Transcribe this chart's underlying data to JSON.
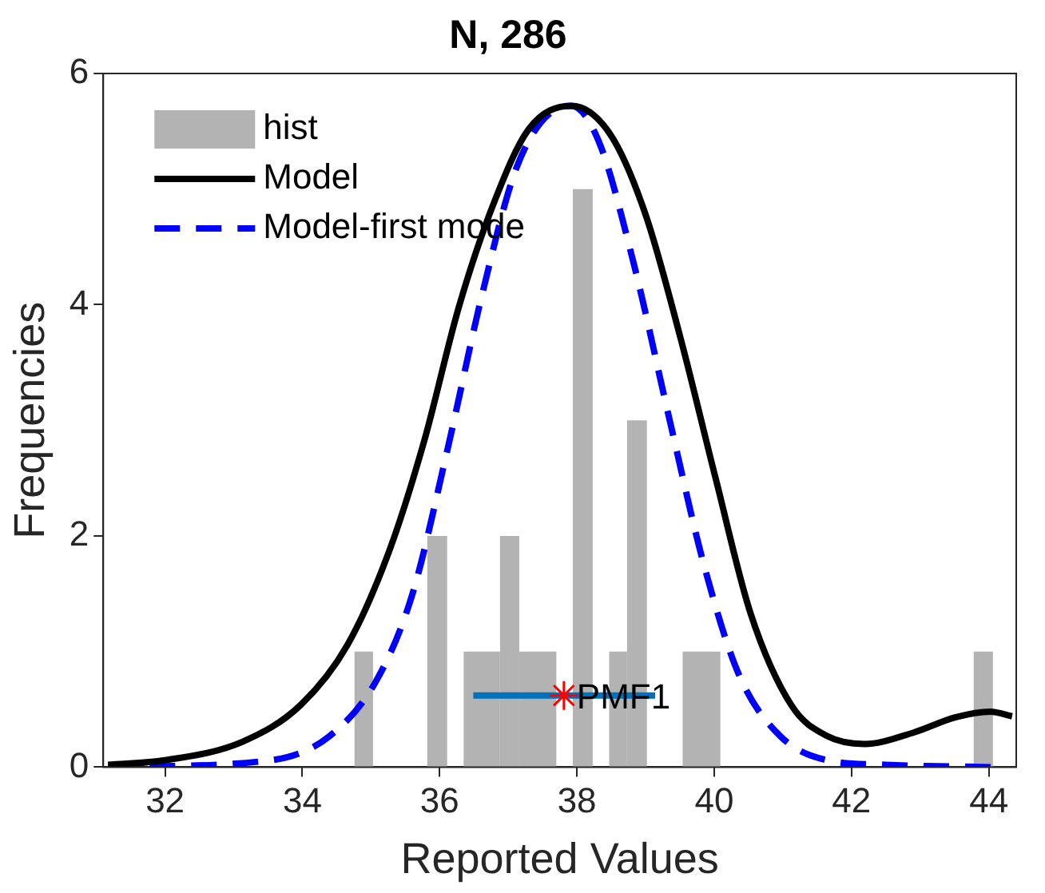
{
  "chart_data": {
    "type": "histogram",
    "title": "N, 286",
    "xlabel": "Reported Values",
    "ylabel": "Frequencies",
    "xlim": [
      31.1,
      44.4
    ],
    "ylim": [
      0,
      6
    ],
    "xticks": [
      32,
      34,
      36,
      38,
      40,
      42,
      44
    ],
    "yticks": [
      0,
      2,
      4,
      6
    ],
    "grid": false,
    "legend": "top left",
    "marker": "none",
    "series": [
      {
        "name": "hist",
        "color": "#b3b3b3",
        "bins": [
          34.76,
          35.03,
          35.82,
          36.11,
          36.35,
          36.88,
          37.16,
          37.7,
          37.94,
          38.23,
          38.47,
          38.73,
          39.02,
          39.54,
          40.09,
          43.78,
          44.06
        ],
        "values": [
          1,
          0,
          2,
          0,
          1,
          2,
          1,
          0,
          5,
          0,
          1,
          3,
          0,
          1,
          0,
          1
        ]
      },
      {
        "name": "Model",
        "type": "line",
        "color": "#000000",
        "line_style": "solid",
        "x": [
          31.17,
          32.0,
          33.13,
          33.98,
          34.66,
          35.26,
          35.77,
          36.28,
          36.79,
          37.3,
          37.92,
          38.49,
          39.0,
          39.51,
          40.02,
          40.53,
          41.13,
          41.64,
          42.19,
          42.91,
          43.51,
          44.02,
          44.34
        ],
        "values": [
          0.02,
          0.06,
          0.22,
          0.54,
          1.06,
          1.86,
          2.81,
          3.98,
          4.88,
          5.52,
          5.72,
          5.47,
          4.78,
          3.71,
          2.5,
          1.33,
          0.53,
          0.27,
          0.2,
          0.3,
          0.43,
          0.48,
          0.44
        ]
      },
      {
        "name": "Model-first mode",
        "type": "line",
        "color": "#0000ff",
        "line_style": "dashed",
        "x": [
          31.17,
          33.55,
          34.4,
          35.08,
          35.6,
          36.1,
          36.62,
          37.13,
          37.72,
          37.92,
          38.32,
          38.83,
          39.34,
          39.85,
          40.36,
          40.96,
          41.64,
          42.49,
          44.04
        ],
        "values": [
          0.0,
          0.06,
          0.27,
          0.75,
          1.49,
          2.71,
          4.09,
          5.2,
          5.7,
          5.72,
          5.41,
          4.35,
          3.03,
          1.75,
          0.8,
          0.27,
          0.06,
          0.02,
          0.0
        ]
      },
      {
        "type": "line",
        "color": "#0072bd",
        "line_style": "solid",
        "x": [
          36.49,
          39.14
        ],
        "values": [
          0.62,
          0.62
        ]
      },
      {
        "type": "scatter",
        "color": "#ff0000",
        "marker": "cross",
        "x": [
          37.81
        ],
        "values": [
          0.62
        ]
      }
    ],
    "annotations": [
      {
        "text": "PMF1",
        "x": 37.81,
        "y": 0.62
      }
    ]
  }
}
